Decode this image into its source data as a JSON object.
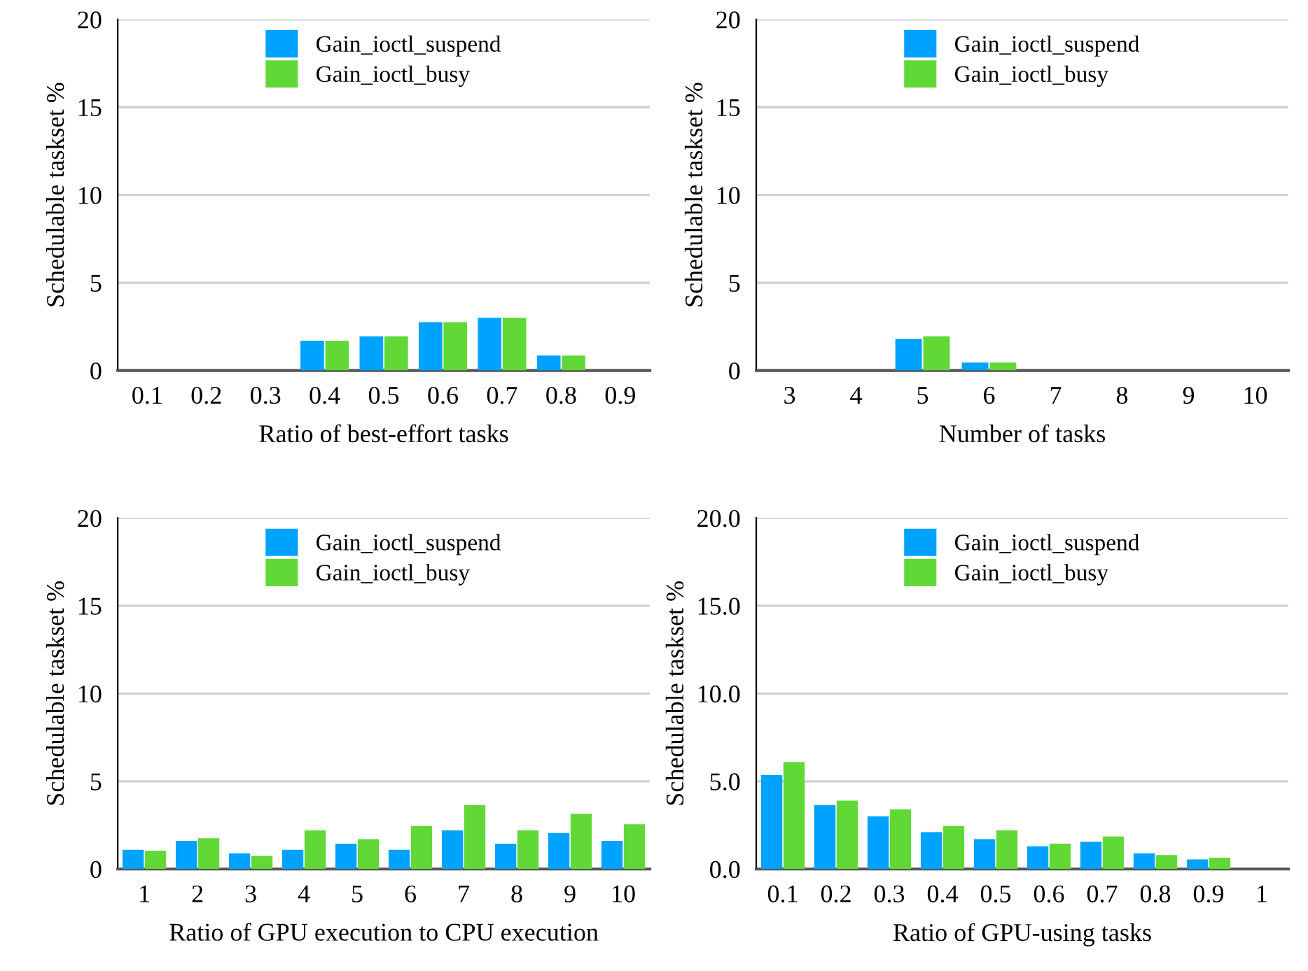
{
  "chart_data": [
    {
      "type": "bar",
      "xlabel": "Ratio of best-effort tasks",
      "ylabel": "Schedulable taskset %",
      "categories": [
        "0.1",
        "0.2",
        "0.3",
        "0.4",
        "0.5",
        "0.6",
        "0.7",
        "0.8",
        "0.9"
      ],
      "ylim": [
        0,
        20
      ],
      "yticks": [
        0,
        5,
        10,
        15,
        20
      ],
      "grid": "y",
      "legend": "top",
      "series": [
        {
          "name": "Gain_ioctl_suspend",
          "color": "#00a2ff",
          "values": [
            0,
            0,
            0,
            1.7,
            1.95,
            2.75,
            3.0,
            0.85,
            0
          ]
        },
        {
          "name": "Gain_ioctl_busy",
          "color": "#61d836",
          "values": [
            0,
            0,
            0,
            1.7,
            1.95,
            2.75,
            3.0,
            0.85,
            0
          ]
        }
      ]
    },
    {
      "type": "bar",
      "xlabel": "Number of tasks",
      "ylabel": "Schedulable taskset %",
      "categories": [
        "3",
        "4",
        "5",
        "6",
        "7",
        "8",
        "9",
        "10"
      ],
      "ylim": [
        0,
        20
      ],
      "yticks": [
        0,
        5,
        10,
        15,
        20
      ],
      "grid": "y",
      "legend": "top",
      "series": [
        {
          "name": "Gain_ioctl_suspend",
          "color": "#00a2ff",
          "values": [
            0,
            0,
            1.8,
            0.45,
            0,
            0,
            0,
            0
          ]
        },
        {
          "name": "Gain_ioctl_busy",
          "color": "#61d836",
          "values": [
            0,
            0,
            1.95,
            0.45,
            0,
            0,
            0,
            0
          ]
        }
      ]
    },
    {
      "type": "bar",
      "xlabel": "Ratio of GPU execution to CPU execution",
      "ylabel": "Schedulable taskset %",
      "categories": [
        "1",
        "2",
        "3",
        "4",
        "5",
        "6",
        "7",
        "8",
        "9",
        "10"
      ],
      "ylim": [
        0,
        20
      ],
      "yticks": [
        0,
        5,
        10,
        15,
        20
      ],
      "grid": "y",
      "legend": "top",
      "series": [
        {
          "name": "Gain_ioctl_suspend",
          "color": "#00a2ff",
          "values": [
            1.1,
            1.6,
            0.9,
            1.1,
            1.45,
            1.1,
            2.2,
            1.45,
            2.05,
            1.6
          ]
        },
        {
          "name": "Gain_ioctl_busy",
          "color": "#61d836",
          "values": [
            1.05,
            1.75,
            0.75,
            2.2,
            1.7,
            2.45,
            3.65,
            2.2,
            3.15,
            2.55
          ]
        }
      ]
    },
    {
      "type": "bar",
      "xlabel": "Ratio of GPU-using tasks",
      "ylabel": "Schedulable taskset %",
      "categories": [
        "0.1",
        "0.2",
        "0.3",
        "0.4",
        "0.5",
        "0.6",
        "0.7",
        "0.8",
        "0.9",
        "1"
      ],
      "ylim": [
        0,
        20
      ],
      "yticks": [
        {
          "value": 0,
          "label": "0.0"
        },
        {
          "value": 5,
          "label": "5.0"
        },
        {
          "value": 10,
          "label": "10.0"
        },
        {
          "value": 15,
          "label": "15.0"
        },
        {
          "value": 20,
          "label": "20.0"
        }
      ],
      "grid": "y",
      "legend": "top",
      "series": [
        {
          "name": "Gain_ioctl_suspend",
          "color": "#00a2ff",
          "values": [
            5.35,
            3.65,
            3.0,
            2.1,
            1.7,
            1.3,
            1.55,
            0.9,
            0.55,
            0
          ]
        },
        {
          "name": "Gain_ioctl_busy",
          "color": "#61d836",
          "values": [
            6.1,
            3.9,
            3.4,
            2.45,
            2.2,
            1.45,
            1.85,
            0.8,
            0.65,
            0
          ]
        }
      ]
    }
  ]
}
